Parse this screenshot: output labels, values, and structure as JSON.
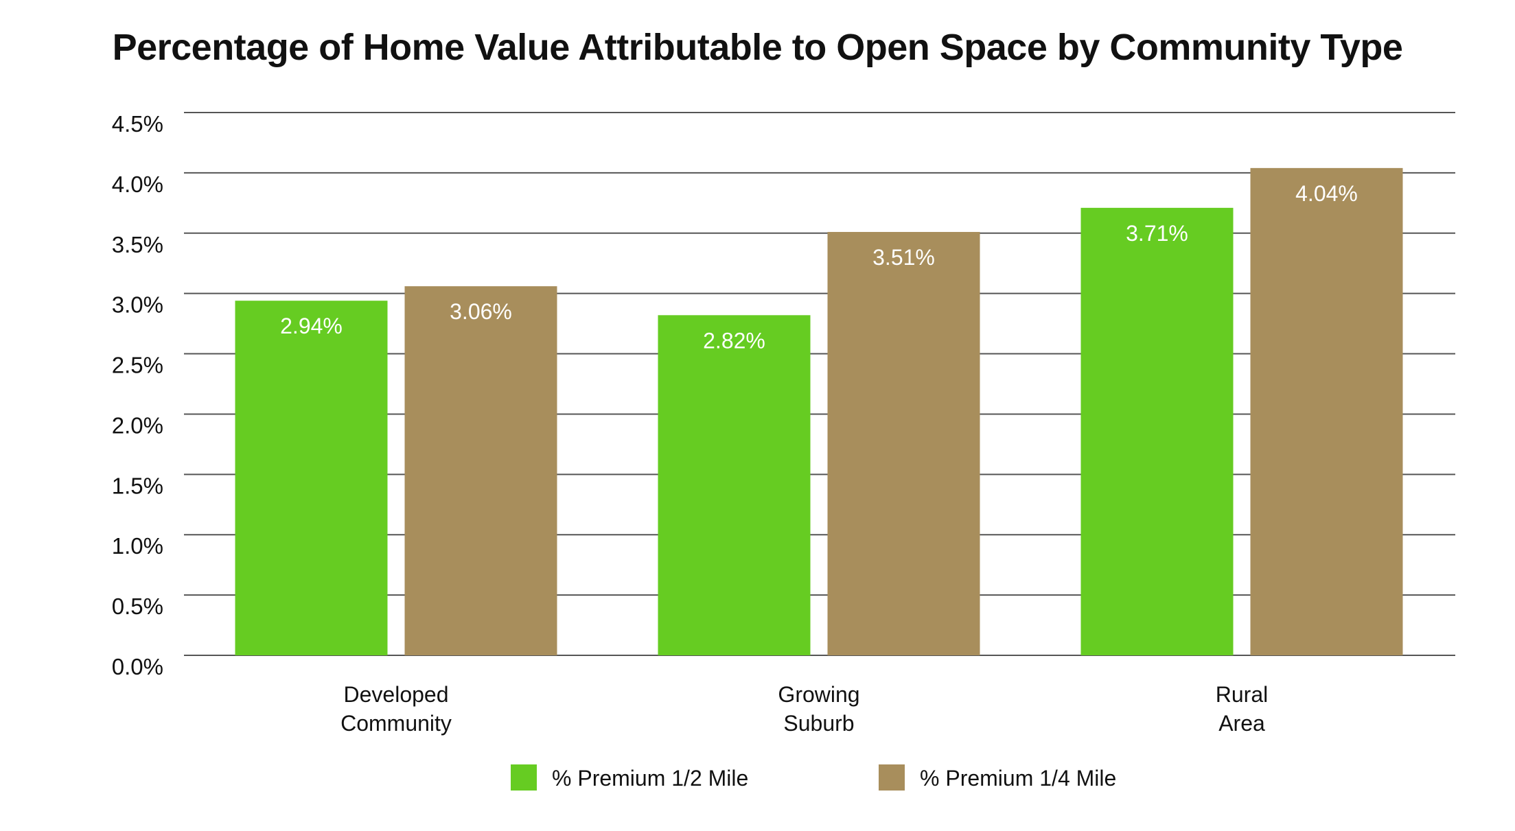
{
  "chart_data": {
    "type": "bar",
    "title": "Percentage of Home Value Attributable to Open Space by Community Type",
    "categories": [
      [
        "Developed",
        "Community"
      ],
      [
        "Growing",
        "Suburb"
      ],
      [
        "Rural",
        "Area"
      ]
    ],
    "series": [
      {
        "name": "% Premium 1/2 Mile",
        "values": [
          2.94,
          2.82,
          3.71
        ],
        "labels": [
          "2.94%",
          "2.82%",
          "3.71%"
        ],
        "color": "#66cc22"
      },
      {
        "name": "% Premium 1/4 Mile",
        "values": [
          3.06,
          3.51,
          4.04
        ],
        "labels": [
          "3.06%",
          "3.51%",
          "4.04%"
        ],
        "color": "#a88e5c"
      }
    ],
    "ylim": [
      0,
      4.5
    ],
    "yticks": [
      0,
      0.5,
      1.0,
      1.5,
      2.0,
      2.5,
      3.0,
      3.5,
      4.0,
      4.5
    ],
    "ytick_labels": [
      "0.0%",
      "0.5%",
      "1.0%",
      "1.5%",
      "2.0%",
      "2.5%",
      "3.0%",
      "3.5%",
      "4.0%",
      "4.5%"
    ],
    "xlabel": "",
    "ylabel": "",
    "grid": true,
    "legend_position": "bottom-center",
    "gridline_color": "#555555"
  }
}
